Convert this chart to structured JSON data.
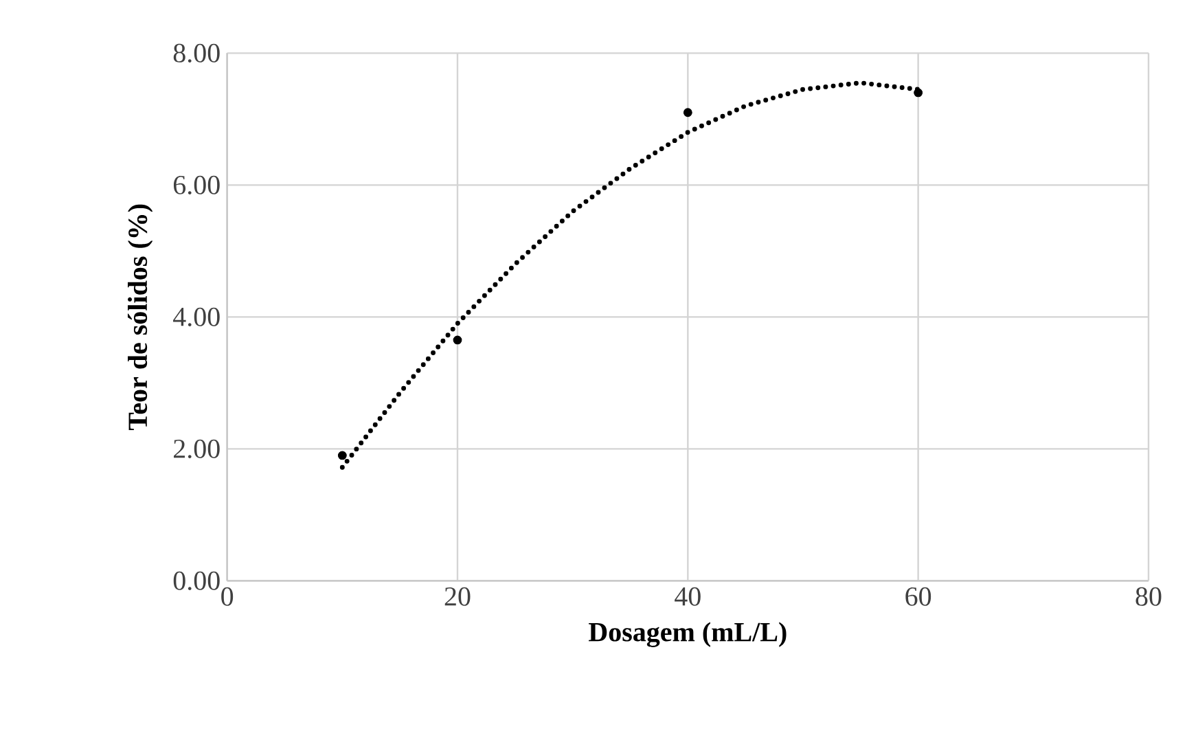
{
  "chart_data": {
    "type": "scatter",
    "xlabel": "Dosagem (mL/L)",
    "ylabel": "Teor de sólidos (%)",
    "xlim": [
      0,
      80
    ],
    "xticks": [
      0,
      20,
      40,
      60,
      80
    ],
    "ylim": [
      0,
      8
    ],
    "yticks": [
      {
        "value": 0,
        "label": "0.00"
      },
      {
        "value": 2,
        "label": "2.00"
      },
      {
        "value": 4,
        "label": "4.00"
      },
      {
        "value": 6,
        "label": "6.00"
      },
      {
        "value": 8,
        "label": "8.00"
      }
    ],
    "grid": true,
    "series": [
      {
        "color": "#000000",
        "marker": "circle",
        "x": [
          10,
          20,
          40,
          60
        ],
        "values": [
          1.9,
          3.65,
          7.1,
          7.4
        ]
      },
      {
        "type": "line",
        "color": "#000000",
        "line_style": "dotted",
        "x": [
          10,
          15,
          20,
          25,
          30,
          35,
          40,
          45,
          50,
          55,
          60
        ],
        "values": [
          1.72,
          2.85,
          3.9,
          4.8,
          5.6,
          6.25,
          6.8,
          7.2,
          7.45,
          7.55,
          7.45
        ]
      }
    ]
  }
}
